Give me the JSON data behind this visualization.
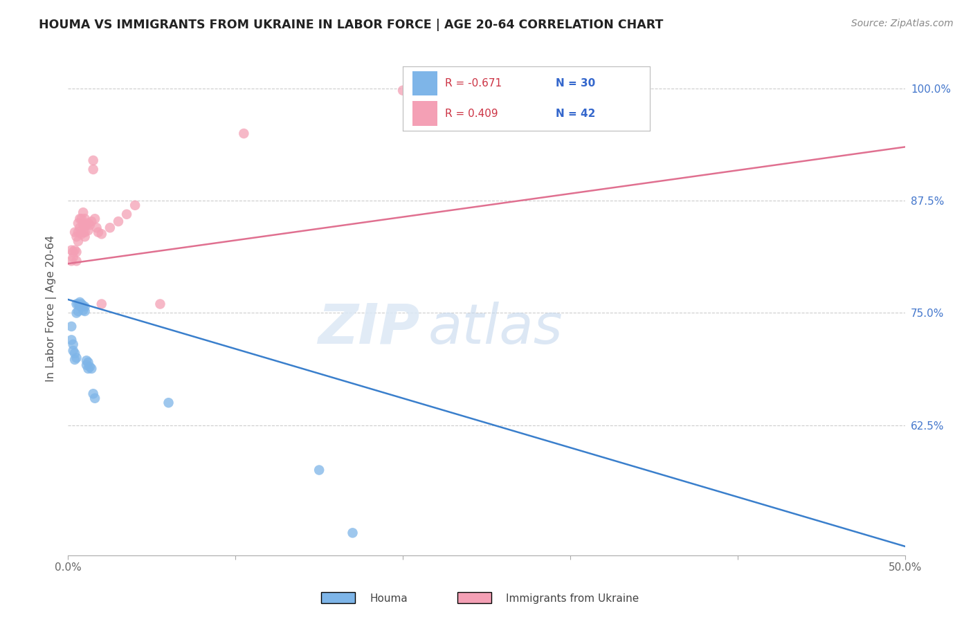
{
  "title": "HOUMA VS IMMIGRANTS FROM UKRAINE IN LABOR FORCE | AGE 20-64 CORRELATION CHART",
  "source": "Source: ZipAtlas.com",
  "ylabel": "In Labor Force | Age 20-64",
  "xlim": [
    0.0,
    0.5
  ],
  "ylim": [
    0.48,
    1.03
  ],
  "ytick_positions": [
    0.625,
    0.75,
    0.875,
    1.0
  ],
  "ytick_labels": [
    "62.5%",
    "75.0%",
    "87.5%",
    "100.0%"
  ],
  "houma_color": "#7EB5E8",
  "ukraine_color": "#F4A0B5",
  "houma_line_color": "#3A7FCC",
  "ukraine_line_color": "#E07090",
  "legend_R_houma": "R = -0.671",
  "legend_N_houma": "N = 30",
  "legend_R_ukraine": "R = 0.409",
  "legend_N_ukraine": "N = 42",
  "watermark_zip": "ZIP",
  "watermark_atlas": "atlas",
  "houma_x": [
    0.002,
    0.002,
    0.003,
    0.003,
    0.004,
    0.004,
    0.005,
    0.005,
    0.005,
    0.006,
    0.006,
    0.007,
    0.007,
    0.008,
    0.008,
    0.009,
    0.009,
    0.01,
    0.01,
    0.011,
    0.011,
    0.012,
    0.012,
    0.013,
    0.014,
    0.015,
    0.016,
    0.06,
    0.15,
    0.17
  ],
  "houma_y": [
    0.735,
    0.72,
    0.715,
    0.708,
    0.705,
    0.698,
    0.76,
    0.75,
    0.7,
    0.76,
    0.752,
    0.762,
    0.758,
    0.76,
    0.757,
    0.758,
    0.753,
    0.757,
    0.752,
    0.697,
    0.692,
    0.695,
    0.688,
    0.69,
    0.688,
    0.66,
    0.655,
    0.65,
    0.575,
    0.505
  ],
  "ukraine_x": [
    0.002,
    0.002,
    0.003,
    0.003,
    0.004,
    0.004,
    0.005,
    0.005,
    0.005,
    0.006,
    0.006,
    0.006,
    0.007,
    0.007,
    0.008,
    0.008,
    0.009,
    0.009,
    0.009,
    0.01,
    0.01,
    0.01,
    0.01,
    0.011,
    0.012,
    0.012,
    0.013,
    0.014,
    0.015,
    0.015,
    0.016,
    0.017,
    0.018,
    0.02,
    0.02,
    0.025,
    0.03,
    0.035,
    0.04,
    0.055,
    0.105,
    0.2
  ],
  "ukraine_y": [
    0.82,
    0.808,
    0.818,
    0.812,
    0.84,
    0.82,
    0.835,
    0.818,
    0.808,
    0.85,
    0.84,
    0.83,
    0.855,
    0.845,
    0.855,
    0.838,
    0.862,
    0.848,
    0.84,
    0.855,
    0.848,
    0.84,
    0.835,
    0.848,
    0.85,
    0.842,
    0.848,
    0.852,
    0.92,
    0.91,
    0.855,
    0.845,
    0.84,
    0.838,
    0.76,
    0.845,
    0.852,
    0.86,
    0.87,
    0.76,
    0.95,
    0.998
  ],
  "houma_trendline_x": [
    0.0,
    0.5
  ],
  "houma_trendline_y": [
    0.765,
    0.49
  ],
  "ukraine_trendline_x": [
    0.0,
    0.5
  ],
  "ukraine_trendline_y": [
    0.805,
    0.935
  ]
}
